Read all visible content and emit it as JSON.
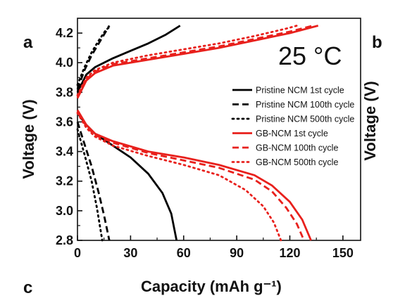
{
  "panel_labels": {
    "a": "a",
    "b": "b",
    "c": "c"
  },
  "temperature_label": "25 °C",
  "chart_data": {
    "type": "line",
    "xlabel": "Capacity (mAh g⁻¹)",
    "ylabel": "Voltage (V)",
    "xlim": [
      0,
      160
    ],
    "ylim": [
      2.8,
      4.3
    ],
    "x_ticks": [
      "0",
      "30",
      "60",
      "90",
      "120",
      "150"
    ],
    "y_ticks": [
      "2.8",
      "3.0",
      "3.2",
      "3.4",
      "3.6",
      "3.8",
      "4.0",
      "4.2"
    ],
    "legend_position": "right",
    "series": [
      {
        "name": "Pristine NCM 1st cycle",
        "color": "#000000",
        "dash": "solid",
        "charge": [
          [
            0,
            3.8
          ],
          [
            5,
            3.92
          ],
          [
            10,
            3.97
          ],
          [
            20,
            4.03
          ],
          [
            30,
            4.08
          ],
          [
            40,
            4.13
          ],
          [
            50,
            4.19
          ],
          [
            58,
            4.25
          ]
        ],
        "discharge": [
          [
            0,
            3.66
          ],
          [
            5,
            3.58
          ],
          [
            10,
            3.52
          ],
          [
            20,
            3.44
          ],
          [
            30,
            3.36
          ],
          [
            40,
            3.25
          ],
          [
            48,
            3.12
          ],
          [
            53,
            2.98
          ],
          [
            56,
            2.8
          ]
        ]
      },
      {
        "name": "Pristine NCM 100th cycle",
        "color": "#000000",
        "dash": "dash",
        "charge": [
          [
            0,
            3.82
          ],
          [
            4,
            3.95
          ],
          [
            8,
            4.05
          ],
          [
            12,
            4.13
          ],
          [
            16,
            4.21
          ],
          [
            18,
            4.25
          ]
        ],
        "discharge": [
          [
            0,
            3.6
          ],
          [
            4,
            3.45
          ],
          [
            8,
            3.3
          ],
          [
            12,
            3.12
          ],
          [
            15,
            2.97
          ],
          [
            18,
            2.8
          ]
        ]
      },
      {
        "name": "Pristine NCM 500th cycle",
        "color": "#000000",
        "dash": "dot",
        "charge": [
          [
            0,
            3.85
          ],
          [
            4,
            3.97
          ],
          [
            8,
            4.07
          ],
          [
            12,
            4.15
          ],
          [
            16,
            4.22
          ],
          [
            19,
            4.25
          ]
        ],
        "discharge": [
          [
            0,
            3.55
          ],
          [
            4,
            3.38
          ],
          [
            8,
            3.2
          ],
          [
            11,
            3.02
          ],
          [
            14,
            2.8
          ]
        ]
      },
      {
        "name": "GB-NCM 1st cycle",
        "color": "#e8201c",
        "dash": "solid",
        "charge": [
          [
            0,
            3.76
          ],
          [
            5,
            3.88
          ],
          [
            10,
            3.93
          ],
          [
            20,
            3.98
          ],
          [
            40,
            4.02
          ],
          [
            60,
            4.06
          ],
          [
            80,
            4.1
          ],
          [
            100,
            4.15
          ],
          [
            120,
            4.2
          ],
          [
            136,
            4.25
          ]
        ],
        "discharge": [
          [
            0,
            3.68
          ],
          [
            5,
            3.58
          ],
          [
            10,
            3.52
          ],
          [
            20,
            3.47
          ],
          [
            40,
            3.4
          ],
          [
            60,
            3.36
          ],
          [
            80,
            3.31
          ],
          [
            100,
            3.24
          ],
          [
            110,
            3.17
          ],
          [
            120,
            3.06
          ],
          [
            127,
            2.94
          ],
          [
            132,
            2.8
          ]
        ]
      },
      {
        "name": "GB-NCM 100th cycle",
        "color": "#e8201c",
        "dash": "dash",
        "charge": [
          [
            0,
            3.77
          ],
          [
            5,
            3.89
          ],
          [
            10,
            3.94
          ],
          [
            20,
            3.99
          ],
          [
            40,
            4.03
          ],
          [
            60,
            4.07
          ],
          [
            80,
            4.11
          ],
          [
            100,
            4.16
          ],
          [
            120,
            4.21
          ],
          [
            133,
            4.25
          ]
        ],
        "discharge": [
          [
            0,
            3.67
          ],
          [
            5,
            3.57
          ],
          [
            10,
            3.51
          ],
          [
            20,
            3.46
          ],
          [
            40,
            3.39
          ],
          [
            60,
            3.34
          ],
          [
            80,
            3.29
          ],
          [
            100,
            3.21
          ],
          [
            110,
            3.13
          ],
          [
            118,
            3.02
          ],
          [
            124,
            2.91
          ],
          [
            128,
            2.8
          ]
        ]
      },
      {
        "name": "GB-NCM 500th cycle",
        "color": "#e8201c",
        "dash": "dot",
        "charge": [
          [
            0,
            3.78
          ],
          [
            5,
            3.9
          ],
          [
            10,
            3.95
          ],
          [
            20,
            4.0
          ],
          [
            40,
            4.05
          ],
          [
            60,
            4.09
          ],
          [
            80,
            4.13
          ],
          [
            100,
            4.18
          ],
          [
            118,
            4.23
          ],
          [
            124,
            4.25
          ]
        ],
        "discharge": [
          [
            0,
            3.66
          ],
          [
            5,
            3.56
          ],
          [
            10,
            3.5
          ],
          [
            20,
            3.44
          ],
          [
            40,
            3.37
          ],
          [
            60,
            3.31
          ],
          [
            80,
            3.24
          ],
          [
            95,
            3.14
          ],
          [
            105,
            3.03
          ],
          [
            111,
            2.92
          ],
          [
            115,
            2.8
          ]
        ]
      }
    ]
  }
}
